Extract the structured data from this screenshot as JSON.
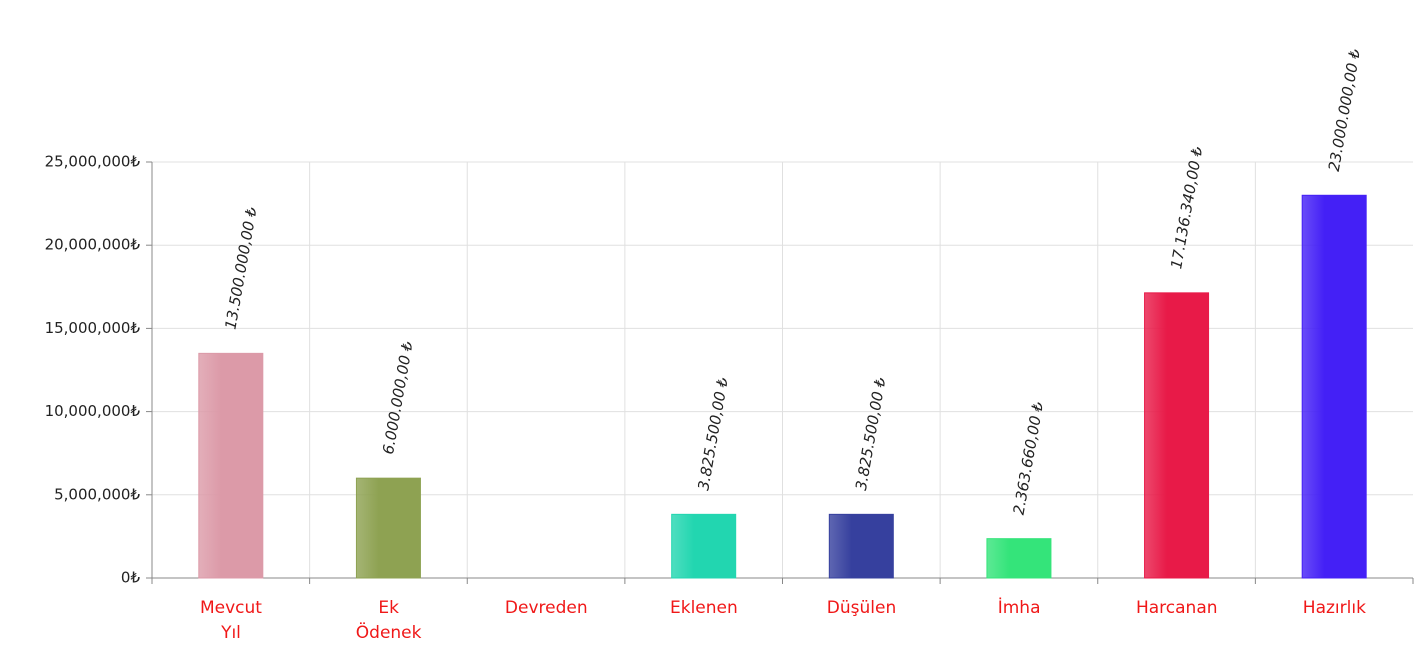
{
  "chart_data": {
    "type": "bar",
    "categories": [
      "Mevcut\nYıl",
      "Ek\nÖdenek",
      "Devreden",
      "Eklenen",
      "Düşülen",
      "İmha",
      "Harcanan",
      "Hazırlık"
    ],
    "values": [
      13500000,
      6000000,
      0,
      3825500,
      3825500,
      2363660,
      17136340,
      23000000
    ],
    "value_labels": [
      "13.500.000,00 ₺",
      "6.000.000,00 ₺",
      null,
      "3.825.500,00 ₺",
      "3.825.500,00 ₺",
      "2.363.660,00 ₺",
      "17.136.340,00 ₺",
      "23.000.000,00 ₺"
    ],
    "colors": [
      "#dc9aa8",
      "#8ea252",
      "#cccccc",
      "#22d6b0",
      "#36409e",
      "#34e47a",
      "#e81a48",
      "#4420f6"
    ],
    "ylim": [
      0,
      25000000
    ],
    "yticks": [
      {
        "value": 0,
        "label": "0₺"
      },
      {
        "value": 5000000,
        "label": "5,000,000₺"
      },
      {
        "value": 10000000,
        "label": "10,000,000₺"
      },
      {
        "value": 15000000,
        "label": "15,000,000₺"
      },
      {
        "value": 20000000,
        "label": "20,000,000₺"
      },
      {
        "value": 25000000,
        "label": "25,000,000₺"
      }
    ],
    "grid": true
  }
}
